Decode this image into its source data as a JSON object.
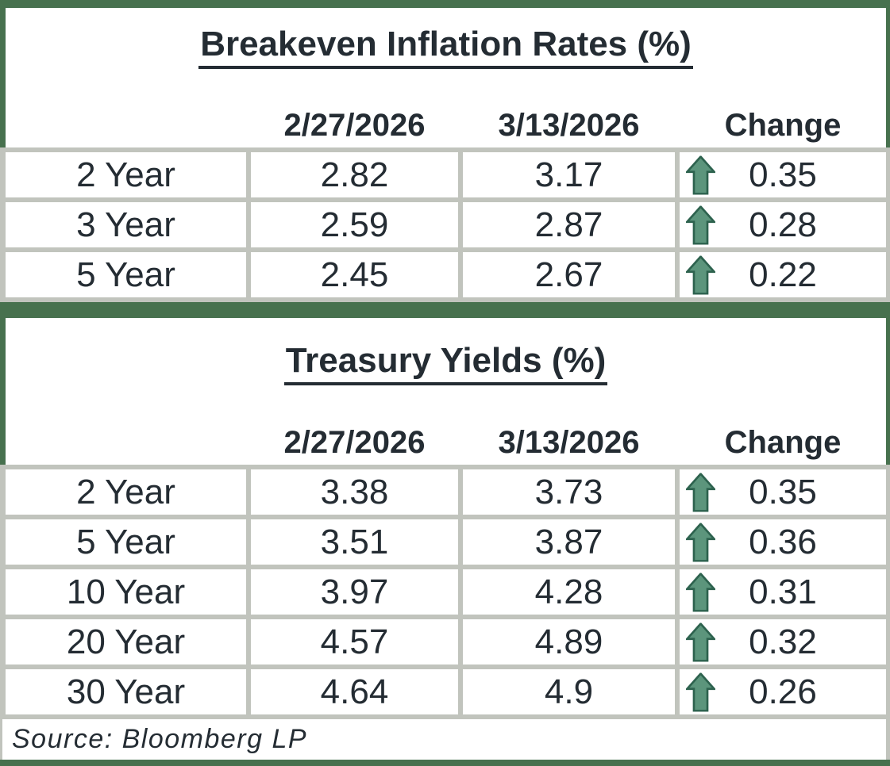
{
  "chart_data": [
    {
      "type": "table",
      "title": "Breakeven Inflation Rates (%)",
      "columns": [
        "2/27/2026",
        "3/13/2026",
        "Change"
      ],
      "rows": [
        {
          "label": "2 Year",
          "v1": "2.82",
          "v2": "3.17",
          "change": "0.35",
          "direction": "up"
        },
        {
          "label": "3 Year",
          "v1": "2.59",
          "v2": "2.87",
          "change": "0.28",
          "direction": "up"
        },
        {
          "label": "5 Year",
          "v1": "2.45",
          "v2": "2.67",
          "change": "0.22",
          "direction": "up"
        }
      ]
    },
    {
      "type": "table",
      "title": "Treasury Yields (%)",
      "columns": [
        "2/27/2026",
        "3/13/2026",
        "Change"
      ],
      "rows": [
        {
          "label": "2 Year",
          "v1": "3.38",
          "v2": "3.73",
          "change": "0.35",
          "direction": "up"
        },
        {
          "label": "5 Year",
          "v1": "3.51",
          "v2": "3.87",
          "change": "0.36",
          "direction": "up"
        },
        {
          "label": "10 Year",
          "v1": "3.97",
          "v2": "4.28",
          "change": "0.31",
          "direction": "up"
        },
        {
          "label": "20 Year",
          "v1": "4.57",
          "v2": "4.89",
          "change": "0.32",
          "direction": "up"
        },
        {
          "label": "30 Year",
          "v1": "4.64",
          "v2": "4.9",
          "change": "0.26",
          "direction": "up"
        }
      ]
    }
  ],
  "source_note": "Source: Bloomberg LP",
  "icons": {
    "change_up": "block-up-arrow"
  },
  "colors": {
    "frame_green": "#47714E",
    "grid_gray": "#C1C4BD",
    "text": "#242C33",
    "arrow_fill": "#5C957C",
    "arrow_stroke": "#2D624E",
    "cell_bg": "#FFFFFF"
  }
}
